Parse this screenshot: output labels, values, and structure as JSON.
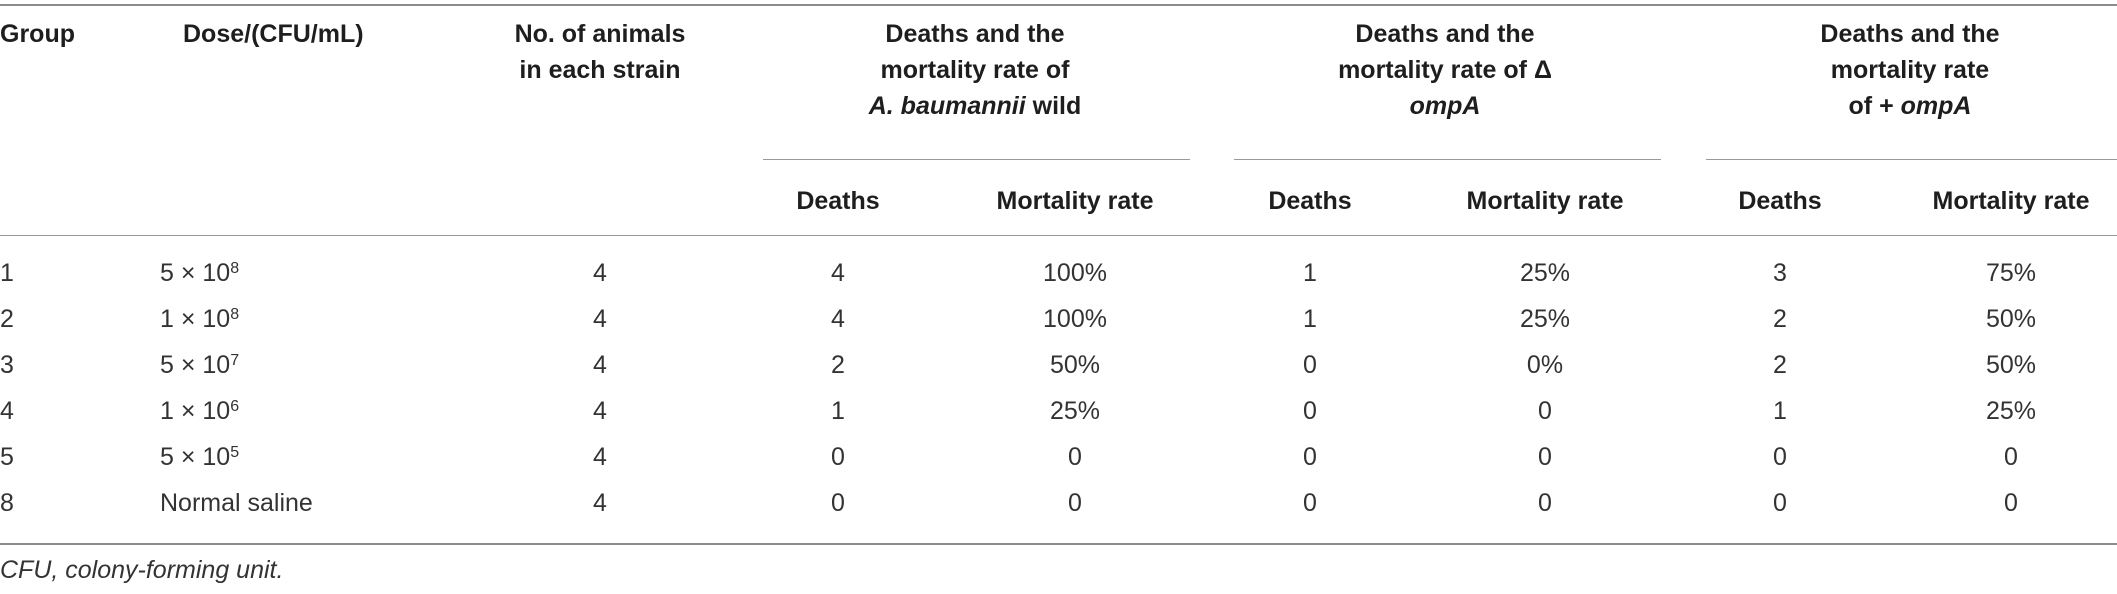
{
  "headers": {
    "group": "Group",
    "dose": "Dose/(CFU/mL)",
    "animals_line1": "No. of animals",
    "animals_line2": "in each strain",
    "wild_line1": "Deaths and the",
    "wild_line2": "mortality rate of",
    "wild_line3_italic": "A. baumannii",
    "wild_line3_rest": " wild",
    "delta_line1": "Deaths and the",
    "delta_line2": "mortality rate of Δ",
    "delta_line3_italic": "ompA",
    "plus_line1": "Deaths and the",
    "plus_line2": "mortality rate",
    "plus_line3_prefix": "of + ",
    "plus_line3_italic": "ompA",
    "deaths": "Deaths",
    "mortality_rate": "Mortality rate"
  },
  "rows": [
    {
      "group": "1",
      "dose_base": "5 × 10",
      "dose_exp": "8",
      "animals": "4",
      "wild_deaths": "4",
      "wild_rate": "100%",
      "delta_deaths": "1",
      "delta_rate": "25%",
      "plus_deaths": "3",
      "plus_rate": "75%"
    },
    {
      "group": "2",
      "dose_base": "1 × 10",
      "dose_exp": "8",
      "animals": "4",
      "wild_deaths": "4",
      "wild_rate": "100%",
      "delta_deaths": "1",
      "delta_rate": "25%",
      "plus_deaths": "2",
      "plus_rate": "50%"
    },
    {
      "group": "3",
      "dose_base": "5 × 10",
      "dose_exp": "7",
      "animals": "4",
      "wild_deaths": "2",
      "wild_rate": "50%",
      "delta_deaths": "0",
      "delta_rate": "0%",
      "plus_deaths": "2",
      "plus_rate": "50%"
    },
    {
      "group": "4",
      "dose_base": "1 × 10",
      "dose_exp": "6",
      "animals": "4",
      "wild_deaths": "1",
      "wild_rate": "25%",
      "delta_deaths": "0",
      "delta_rate": "0",
      "plus_deaths": "1",
      "plus_rate": "25%"
    },
    {
      "group": "5",
      "dose_base": "5 × 10",
      "dose_exp": "5",
      "animals": "4",
      "wild_deaths": "0",
      "wild_rate": "0",
      "delta_deaths": "0",
      "delta_rate": "0",
      "plus_deaths": "0",
      "plus_rate": "0"
    },
    {
      "group": "8",
      "dose_base": "Normal saline",
      "dose_exp": "",
      "animals": "4",
      "wild_deaths": "0",
      "wild_rate": "0",
      "delta_deaths": "0",
      "delta_rate": "0",
      "plus_deaths": "0",
      "plus_rate": "0"
    }
  ],
  "footnote": "CFU, colony-forming unit."
}
